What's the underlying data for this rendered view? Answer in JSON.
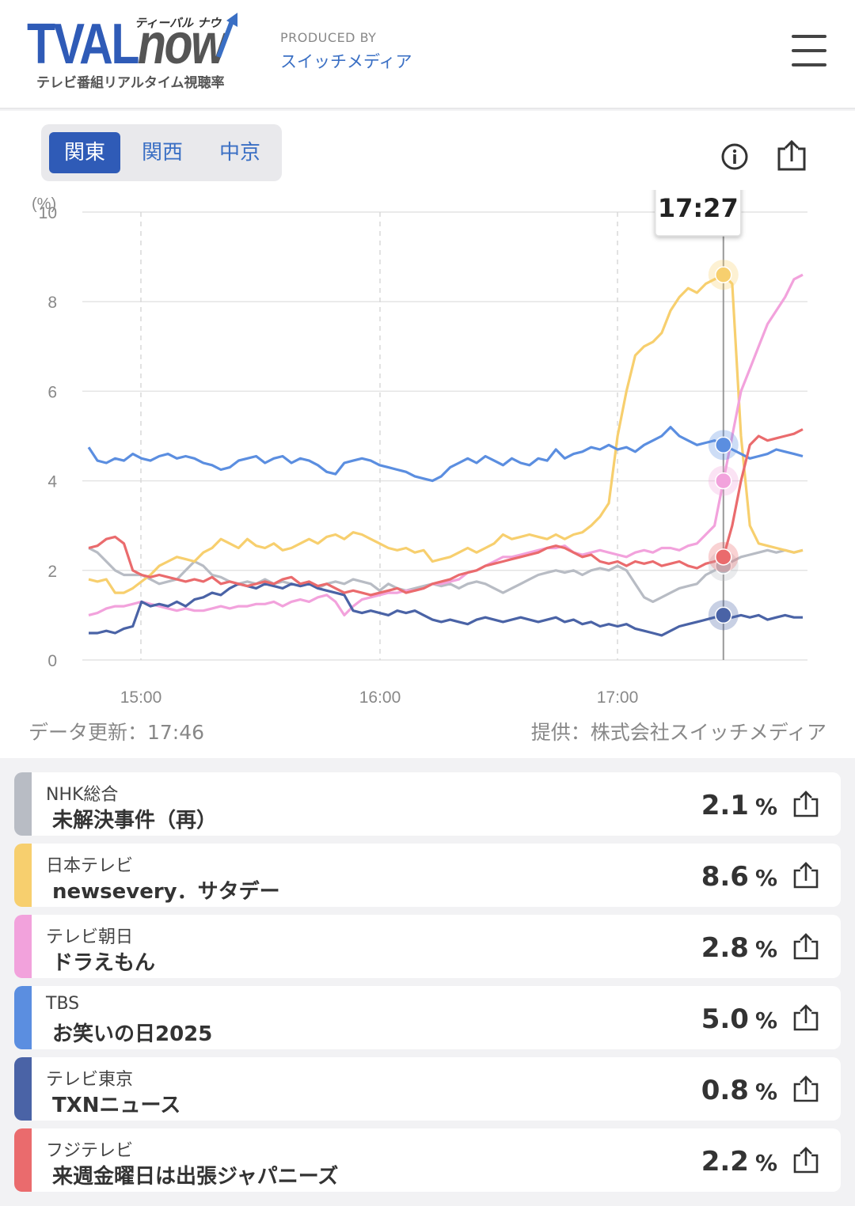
{
  "header": {
    "logo_main": "TVAL",
    "logo_now": "now",
    "logo_kana": "ティーバル ナウ",
    "logo_sub": "テレビ番組リアルタイム視聴率",
    "produced_by": "PRODUCED BY",
    "producer": "スイッチメディア"
  },
  "tabs": [
    {
      "label": "関東",
      "active": true
    },
    {
      "label": "関西",
      "active": false
    },
    {
      "label": "中京",
      "active": false
    }
  ],
  "tooltip": "17:27",
  "footer": {
    "updated": "データ更新：17:46",
    "source": "提供：株式会社スイッチメディア"
  },
  "chart_data": {
    "type": "line",
    "y_unit": "(%)",
    "ylim": [
      0,
      10
    ],
    "yticks": [
      "10",
      "8",
      "6",
      "4",
      "2",
      "0"
    ],
    "xticks": [
      "15:00",
      "16:00",
      "17:00"
    ],
    "cursor_time": "17:27",
    "series": [
      {
        "name": "NHK総合",
        "color": "#b8bcc4",
        "values": [
          2.5,
          2.4,
          2.2,
          2.0,
          1.9,
          1.9,
          1.9,
          1.8,
          1.7,
          1.75,
          1.8,
          2.0,
          2.2,
          2.1,
          1.9,
          1.85,
          1.75,
          1.7,
          1.75,
          1.7,
          1.8,
          1.7,
          1.75,
          1.7,
          1.65,
          1.7,
          1.6,
          1.7,
          1.75,
          1.7,
          1.8,
          1.75,
          1.7,
          1.55,
          1.7,
          1.6,
          1.55,
          1.6,
          1.65,
          1.7,
          1.65,
          1.7,
          1.6,
          1.7,
          1.75,
          1.7,
          1.6,
          1.5,
          1.6,
          1.7,
          1.8,
          1.9,
          1.95,
          2.0,
          1.95,
          2.0,
          1.9,
          2.0,
          2.05,
          2.0,
          2.1,
          2.0,
          1.7,
          1.4,
          1.3,
          1.4,
          1.5,
          1.6,
          1.65,
          1.7,
          1.9,
          2.0,
          2.1,
          2.2,
          2.3,
          2.35,
          2.4,
          2.45,
          2.4,
          2.45,
          2.4,
          2.45
        ]
      },
      {
        "name": "日本テレビ",
        "color": "#f7cf6e",
        "values": [
          1.8,
          1.75,
          1.8,
          1.5,
          1.5,
          1.6,
          1.75,
          1.9,
          2.1,
          2.2,
          2.3,
          2.25,
          2.2,
          2.4,
          2.5,
          2.7,
          2.6,
          2.5,
          2.7,
          2.55,
          2.5,
          2.6,
          2.45,
          2.5,
          2.6,
          2.7,
          2.6,
          2.75,
          2.8,
          2.7,
          2.85,
          2.8,
          2.7,
          2.6,
          2.5,
          2.45,
          2.5,
          2.4,
          2.45,
          2.2,
          2.25,
          2.3,
          2.4,
          2.5,
          2.4,
          2.5,
          2.6,
          2.8,
          2.7,
          2.75,
          2.8,
          2.75,
          2.7,
          2.8,
          2.7,
          2.8,
          2.85,
          3.0,
          3.2,
          3.5,
          5.0,
          6.0,
          6.8,
          7.0,
          7.1,
          7.3,
          7.8,
          8.1,
          8.3,
          8.2,
          8.4,
          8.5,
          8.6,
          8.4,
          5.0,
          3.0,
          2.6,
          2.55,
          2.5,
          2.45,
          2.4,
          2.45
        ]
      },
      {
        "name": "テレビ朝日",
        "color": "#f2a2dc",
        "values": [
          1.0,
          1.05,
          1.15,
          1.2,
          1.2,
          1.25,
          1.3,
          1.25,
          1.2,
          1.15,
          1.1,
          1.15,
          1.1,
          1.1,
          1.15,
          1.2,
          1.15,
          1.2,
          1.2,
          1.25,
          1.25,
          1.3,
          1.2,
          1.3,
          1.35,
          1.3,
          1.4,
          1.45,
          1.3,
          1.0,
          1.2,
          1.35,
          1.4,
          1.45,
          1.5,
          1.5,
          1.55,
          1.55,
          1.6,
          1.7,
          1.7,
          1.75,
          1.8,
          1.95,
          2.0,
          2.1,
          2.2,
          2.3,
          2.3,
          2.35,
          2.4,
          2.45,
          2.5,
          2.5,
          2.55,
          2.4,
          2.35,
          2.4,
          2.45,
          2.4,
          2.35,
          2.3,
          2.4,
          2.45,
          2.4,
          2.5,
          2.5,
          2.45,
          2.55,
          2.6,
          2.8,
          3.0,
          4.0,
          5.0,
          6.0,
          6.5,
          7.0,
          7.5,
          7.8,
          8.1,
          8.5,
          8.6
        ]
      },
      {
        "name": "TBS",
        "color": "#5b8ee0",
        "values": [
          4.75,
          4.45,
          4.4,
          4.5,
          4.45,
          4.6,
          4.5,
          4.45,
          4.55,
          4.6,
          4.5,
          4.55,
          4.5,
          4.4,
          4.35,
          4.25,
          4.3,
          4.45,
          4.5,
          4.55,
          4.4,
          4.5,
          4.55,
          4.4,
          4.5,
          4.45,
          4.35,
          4.2,
          4.15,
          4.4,
          4.45,
          4.5,
          4.45,
          4.35,
          4.3,
          4.25,
          4.2,
          4.1,
          4.05,
          4.0,
          4.1,
          4.3,
          4.4,
          4.5,
          4.4,
          4.55,
          4.45,
          4.35,
          4.5,
          4.4,
          4.35,
          4.5,
          4.45,
          4.7,
          4.5,
          4.6,
          4.65,
          4.75,
          4.7,
          4.8,
          4.7,
          4.75,
          4.65,
          4.8,
          4.9,
          5.0,
          5.2,
          5.0,
          4.9,
          4.8,
          4.85,
          4.9,
          4.8,
          4.7,
          4.6,
          4.5,
          4.55,
          4.6,
          4.7,
          4.65,
          4.6,
          4.55
        ]
      },
      {
        "name": "テレビ東京",
        "color": "#4a63a6",
        "values": [
          0.6,
          0.6,
          0.65,
          0.6,
          0.7,
          0.75,
          1.3,
          1.2,
          1.25,
          1.2,
          1.3,
          1.2,
          1.35,
          1.4,
          1.5,
          1.45,
          1.6,
          1.7,
          1.65,
          1.6,
          1.7,
          1.65,
          1.6,
          1.7,
          1.65,
          1.7,
          1.6,
          1.55,
          1.5,
          1.45,
          1.1,
          1.05,
          1.1,
          1.05,
          1.0,
          1.1,
          1.05,
          1.1,
          1.0,
          0.9,
          0.85,
          0.9,
          0.85,
          0.8,
          0.9,
          0.95,
          0.9,
          0.85,
          0.9,
          0.95,
          0.9,
          0.85,
          0.9,
          0.95,
          0.85,
          0.9,
          0.8,
          0.85,
          0.75,
          0.8,
          0.75,
          0.8,
          0.7,
          0.65,
          0.6,
          0.55,
          0.65,
          0.75,
          0.8,
          0.85,
          0.9,
          0.95,
          1.0,
          0.95,
          1.0,
          0.95,
          1.0,
          0.9,
          0.95,
          1.0,
          0.95,
          0.95
        ]
      },
      {
        "name": "フジテレビ",
        "color": "#ea6b6d",
        "values": [
          2.5,
          2.55,
          2.7,
          2.75,
          2.6,
          2.0,
          1.9,
          1.85,
          1.9,
          1.85,
          1.8,
          1.75,
          1.8,
          1.75,
          1.85,
          1.7,
          1.75,
          1.7,
          1.65,
          1.7,
          1.75,
          1.7,
          1.8,
          1.85,
          1.7,
          1.75,
          1.65,
          1.7,
          1.6,
          1.5,
          1.55,
          1.5,
          1.45,
          1.5,
          1.55,
          1.6,
          1.5,
          1.55,
          1.6,
          1.7,
          1.75,
          1.8,
          1.9,
          1.95,
          2.0,
          2.1,
          2.15,
          2.2,
          2.25,
          2.3,
          2.35,
          2.4,
          2.5,
          2.55,
          2.5,
          2.4,
          2.3,
          2.35,
          2.2,
          2.15,
          2.2,
          2.1,
          2.2,
          2.15,
          2.2,
          2.1,
          2.15,
          2.2,
          2.1,
          2.05,
          2.15,
          2.2,
          2.3,
          3.0,
          4.0,
          4.8,
          5.0,
          4.9,
          4.95,
          5.0,
          5.05,
          5.15
        ]
      }
    ]
  },
  "list": [
    {
      "channel": "NHK総合",
      "program": "未解決事件（再）",
      "rate": "2.1",
      "unit": "%",
      "color": "#b8bcc4"
    },
    {
      "channel": "日本テレビ",
      "program": "newsevery．サタデー",
      "rate": "8.6",
      "unit": "%",
      "color": "#f7cf6e"
    },
    {
      "channel": "テレビ朝日",
      "program": "ドラえもん",
      "rate": "2.8",
      "unit": "%",
      "color": "#f2a2dc"
    },
    {
      "channel": "TBS",
      "program": "お笑いの日2025",
      "rate": "5.0",
      "unit": "%",
      "color": "#5b8ee0"
    },
    {
      "channel": "テレビ東京",
      "program": "TXNニュース",
      "rate": "0.8",
      "unit": "%",
      "color": "#4a63a6"
    },
    {
      "channel": "フジテレビ",
      "program": "来週金曜日は出張ジャパニーズ",
      "rate": "2.2",
      "unit": "%",
      "color": "#ea6b6d"
    }
  ],
  "icons": {
    "menu": "hamburger-icon",
    "info": "info-icon",
    "share": "share-icon"
  }
}
